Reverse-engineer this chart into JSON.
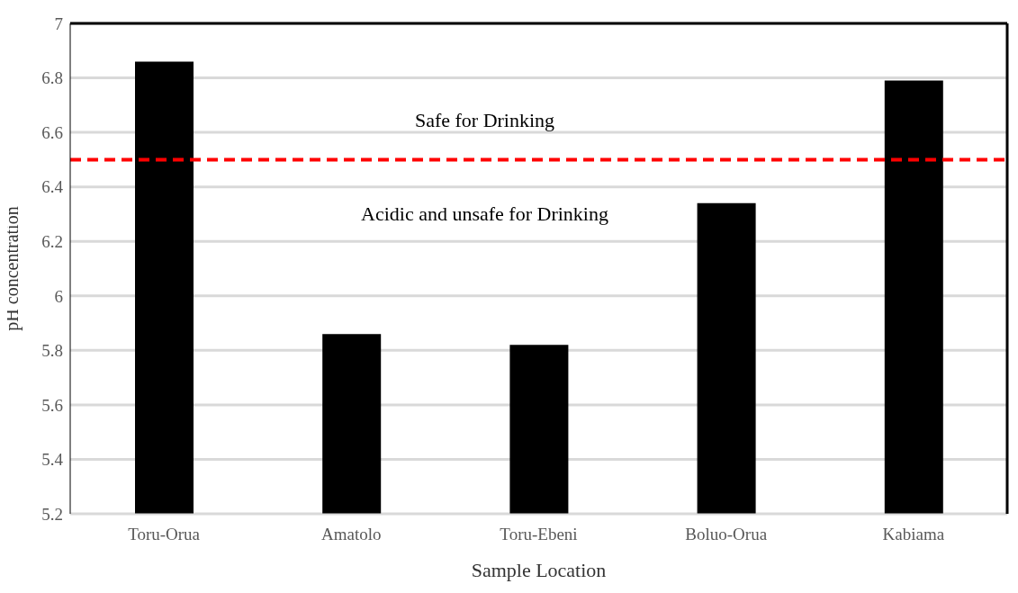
{
  "chart_data": {
    "type": "bar",
    "xlabel": "Sample Location",
    "ylabel": "pH concentration",
    "categories": [
      "Toru-Orua",
      "Amatolo",
      "Toru-Ebeni",
      "Boluo-Orua",
      "Kabiama"
    ],
    "values": [
      6.86,
      5.86,
      5.82,
      6.34,
      6.79
    ],
    "color": "#000000",
    "ylim": [
      5.2,
      7
    ],
    "yticks": [
      5.2,
      5.4,
      5.6,
      5.8,
      6,
      6.2,
      6.4,
      6.6,
      6.8,
      7
    ],
    "grid": "y",
    "ref_lines": [
      {
        "axis": "y",
        "value": 6.5,
        "color": "#ff0000",
        "line_style": "dashed"
      }
    ],
    "annotations": [
      "Safe for Drinking",
      "Acidic and unsafe for Drinking"
    ]
  }
}
